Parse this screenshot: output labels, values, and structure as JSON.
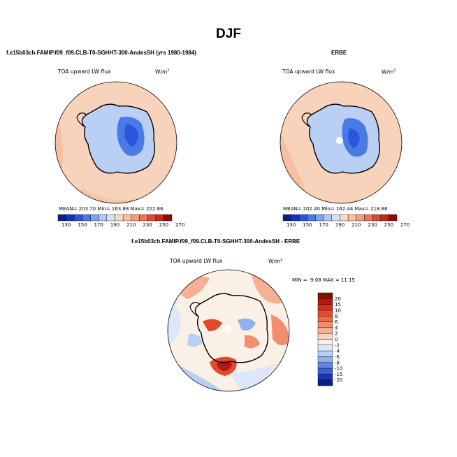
{
  "title": "DJF",
  "panels": [
    {
      "title": "f.e15b03ch.FAMIP.f09_f09.CLB-T0-SGHHT-300-AndesSH (yrs 1980-1984)",
      "variable": "TOA upward LW flux",
      "units": "W/m",
      "units_exp": "2",
      "stats": "MEAN= 203.70   Min= 163.88   Max= 222.86"
    },
    {
      "title": "ERBE",
      "variable": "TOA upward LW flux",
      "units": "W/m",
      "units_exp": "2",
      "stats": "MEAN= 202.40   Min= 162.44   Max= 218.86"
    },
    {
      "title": "f.e15b03ch.FAMIP.f09_f09.CLB-T0-SGHHT-300-AndesSH - ERBE",
      "variable": "TOA upward LW flux",
      "units": "W/m",
      "units_exp": "2",
      "stats": "MIN =  -9.08 MAX =  11.15"
    }
  ],
  "chart_data": [
    {
      "type": "heatmap",
      "title": "f.e15b03ch.FAMIP.f09_f09.CLB-T0-SGHHT-300-AndesSH (yrs 1980-1984)",
      "projection": "south polar stereographic",
      "variable": "TOA upward LW flux",
      "units": "W/m^2",
      "mean": 203.7,
      "min": 163.88,
      "max": 222.86,
      "colorbar_levels": [
        130,
        150,
        170,
        190,
        210,
        230,
        250,
        270
      ],
      "colors": [
        "#0b1f8a",
        "#1531c4",
        "#2c55dd",
        "#4a7ae6",
        "#7fa3ee",
        "#aec8f5",
        "#d4e2fa",
        "#f6dcc8",
        "#f7c1a3",
        "#f29c7a",
        "#ec7758",
        "#de4a2f",
        "#c52a18",
        "#8c0c07"
      ]
    },
    {
      "type": "heatmap",
      "title": "ERBE",
      "projection": "south polar stereographic",
      "variable": "TOA upward LW flux",
      "units": "W/m^2",
      "mean": 202.4,
      "min": 162.44,
      "max": 218.86,
      "colorbar_levels": [
        130,
        150,
        170,
        190,
        210,
        230,
        250,
        270
      ],
      "colors": [
        "#0b1f8a",
        "#1531c4",
        "#2c55dd",
        "#4a7ae6",
        "#7fa3ee",
        "#aec8f5",
        "#d4e2fa",
        "#f6dcc8",
        "#f7c1a3",
        "#f29c7a",
        "#ec7758",
        "#de4a2f",
        "#c52a18",
        "#8c0c07"
      ]
    },
    {
      "type": "heatmap",
      "title": "f.e15b03ch.FAMIP.f09_f09.CLB-T0-SGHHT-300-AndesSH - ERBE",
      "projection": "south polar stereographic",
      "variable": "TOA upward LW flux",
      "units": "W/m^2",
      "min": -9.08,
      "max": 11.15,
      "colorbar_levels": [
        20,
        15,
        10,
        8,
        6,
        4,
        2,
        0,
        -2,
        -4,
        -6,
        -8,
        -10,
        -15,
        -20
      ],
      "colors": [
        "#8c0c07",
        "#b21a10",
        "#cf2f1c",
        "#e24a30",
        "#ec6a4c",
        "#f28d6e",
        "#f6b094",
        "#fad3bf",
        "#fbf0e6",
        "#dce7f8",
        "#b9d0f4",
        "#8fb1ec",
        "#5f87e2",
        "#3a5cd6",
        "#1c35b8",
        "#0b1f8a"
      ]
    }
  ]
}
